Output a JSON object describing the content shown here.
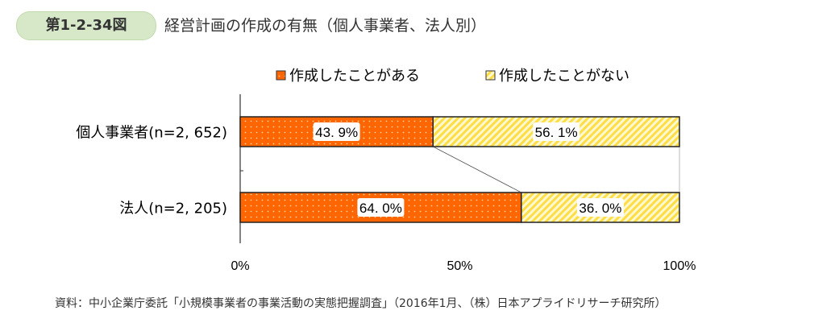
{
  "header": {
    "figure_no": "第1-2-34図",
    "title": "経営計画の作成の有無（個人事業者、法人別）"
  },
  "chart_data": {
    "type": "bar",
    "stacked": true,
    "orientation": "horizontal",
    "categories": [
      "個人事業者(n=2, 652)",
      "法人(n=2, 205)"
    ],
    "series": [
      {
        "name": "作成したことがある",
        "values": [
          43.9,
          64.0
        ],
        "labels": [
          "43. 9%",
          "64. 0%"
        ],
        "color": "#ff6600"
      },
      {
        "name": "作成したことがない",
        "values": [
          56.1,
          36.0
        ],
        "labels": [
          "56. 1%",
          "36. 0%"
        ],
        "color": "#ffe066"
      }
    ],
    "xlim": [
      0,
      100
    ],
    "xticks": [
      "0%",
      "50%",
      "100%"
    ],
    "legend": "top"
  },
  "source": "資料：中小企業庁委託「小規模事業者の事業活動の実態把握調査」（2016年1月、（株）日本アプライドリサーチ研究所）"
}
